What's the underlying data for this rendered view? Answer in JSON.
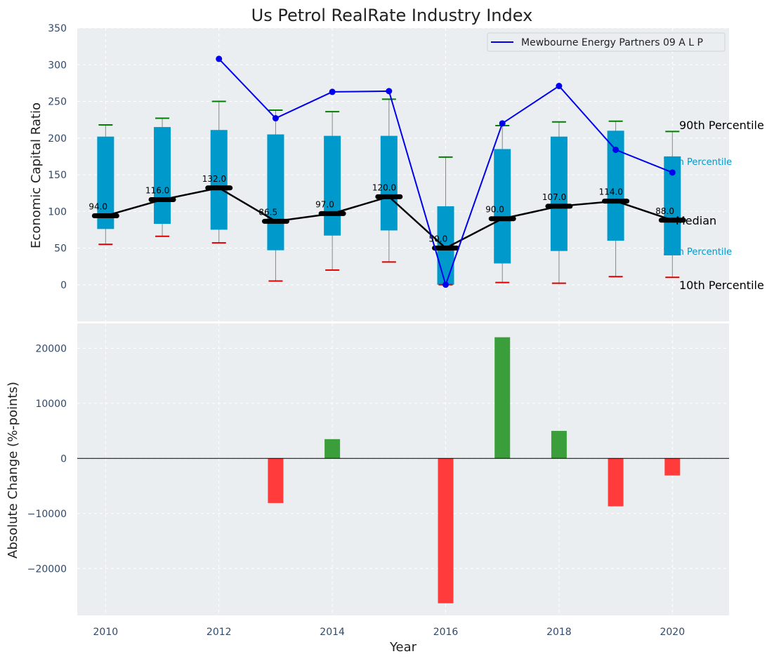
{
  "colors": {
    "panel_bg": "#eaeef0",
    "box": "#0099cc",
    "whisker_top": "#008000",
    "whisker_bottom": "#dd0000",
    "median": "#000000",
    "company_line": "#0000ee",
    "bar_pos": "#3a9e3a",
    "bar_neg": "#ff3b3b"
  },
  "chart_data": [
    {
      "type": "box",
      "title": "Us Petrol RealRate Industry Index",
      "ylabel": "Economic Capital Ratio",
      "ylim": [
        -50,
        350
      ],
      "yticks": [
        0,
        50,
        100,
        150,
        200,
        250,
        300,
        350
      ],
      "years": [
        2010,
        2011,
        2012,
        2013,
        2014,
        2015,
        2016,
        2017,
        2018,
        2019,
        2020
      ],
      "p10": [
        55,
        66,
        57,
        5,
        20,
        31,
        0,
        3,
        2,
        11,
        10
      ],
      "p25": [
        76,
        83,
        75,
        47,
        67,
        74,
        0,
        29,
        46,
        60,
        40
      ],
      "median": [
        94.0,
        116.0,
        132.0,
        86.5,
        97.0,
        120.0,
        50.0,
        90.0,
        107.0,
        114.0,
        88.0
      ],
      "p75": [
        202,
        215,
        211,
        205,
        203,
        203,
        107,
        185,
        202,
        210,
        175
      ],
      "p90": [
        218,
        227,
        250,
        238,
        236,
        253,
        174,
        217,
        222,
        223,
        209
      ],
      "median_labels": [
        "94.0",
        "116.0",
        "132.0",
        "86.5",
        "97.0",
        "120.0",
        "50.0",
        "90.0",
        "107.0",
        "114.0",
        "88.0"
      ],
      "series": [
        {
          "name": "Mewbourne Energy Partners 09 A L P",
          "x": [
            2012,
            2013,
            2014,
            2015,
            2016,
            2017,
            2018,
            2019,
            2020
          ],
          "values": [
            308,
            227,
            263,
            264,
            0,
            220,
            271,
            184,
            153
          ]
        }
      ],
      "legend": "Mewbourne Energy Partners 09 A L P",
      "right_labels": {
        "p90": "90th Percentile",
        "p75": "75th Percentile",
        "median": "Median",
        "p25": "25th Percentile",
        "p10": "10th Percentile"
      }
    },
    {
      "type": "bar",
      "ylabel": "Absolute Change (%-points)",
      "xlabel": "Year",
      "ylim": [
        -28500,
        24500
      ],
      "yticks": [
        -20000,
        -10000,
        0,
        10000,
        20000
      ],
      "ytick_labels": [
        "−20000",
        "−10000",
        "0",
        "10000",
        "20000"
      ],
      "xticks": [
        2010,
        2012,
        2014,
        2016,
        2018,
        2020
      ],
      "x": [
        2013,
        2014,
        2016,
        2017,
        2018,
        2019,
        2020
      ],
      "values": [
        -8100,
        3500,
        -26300,
        22000,
        5000,
        -8700,
        -3100
      ]
    }
  ]
}
